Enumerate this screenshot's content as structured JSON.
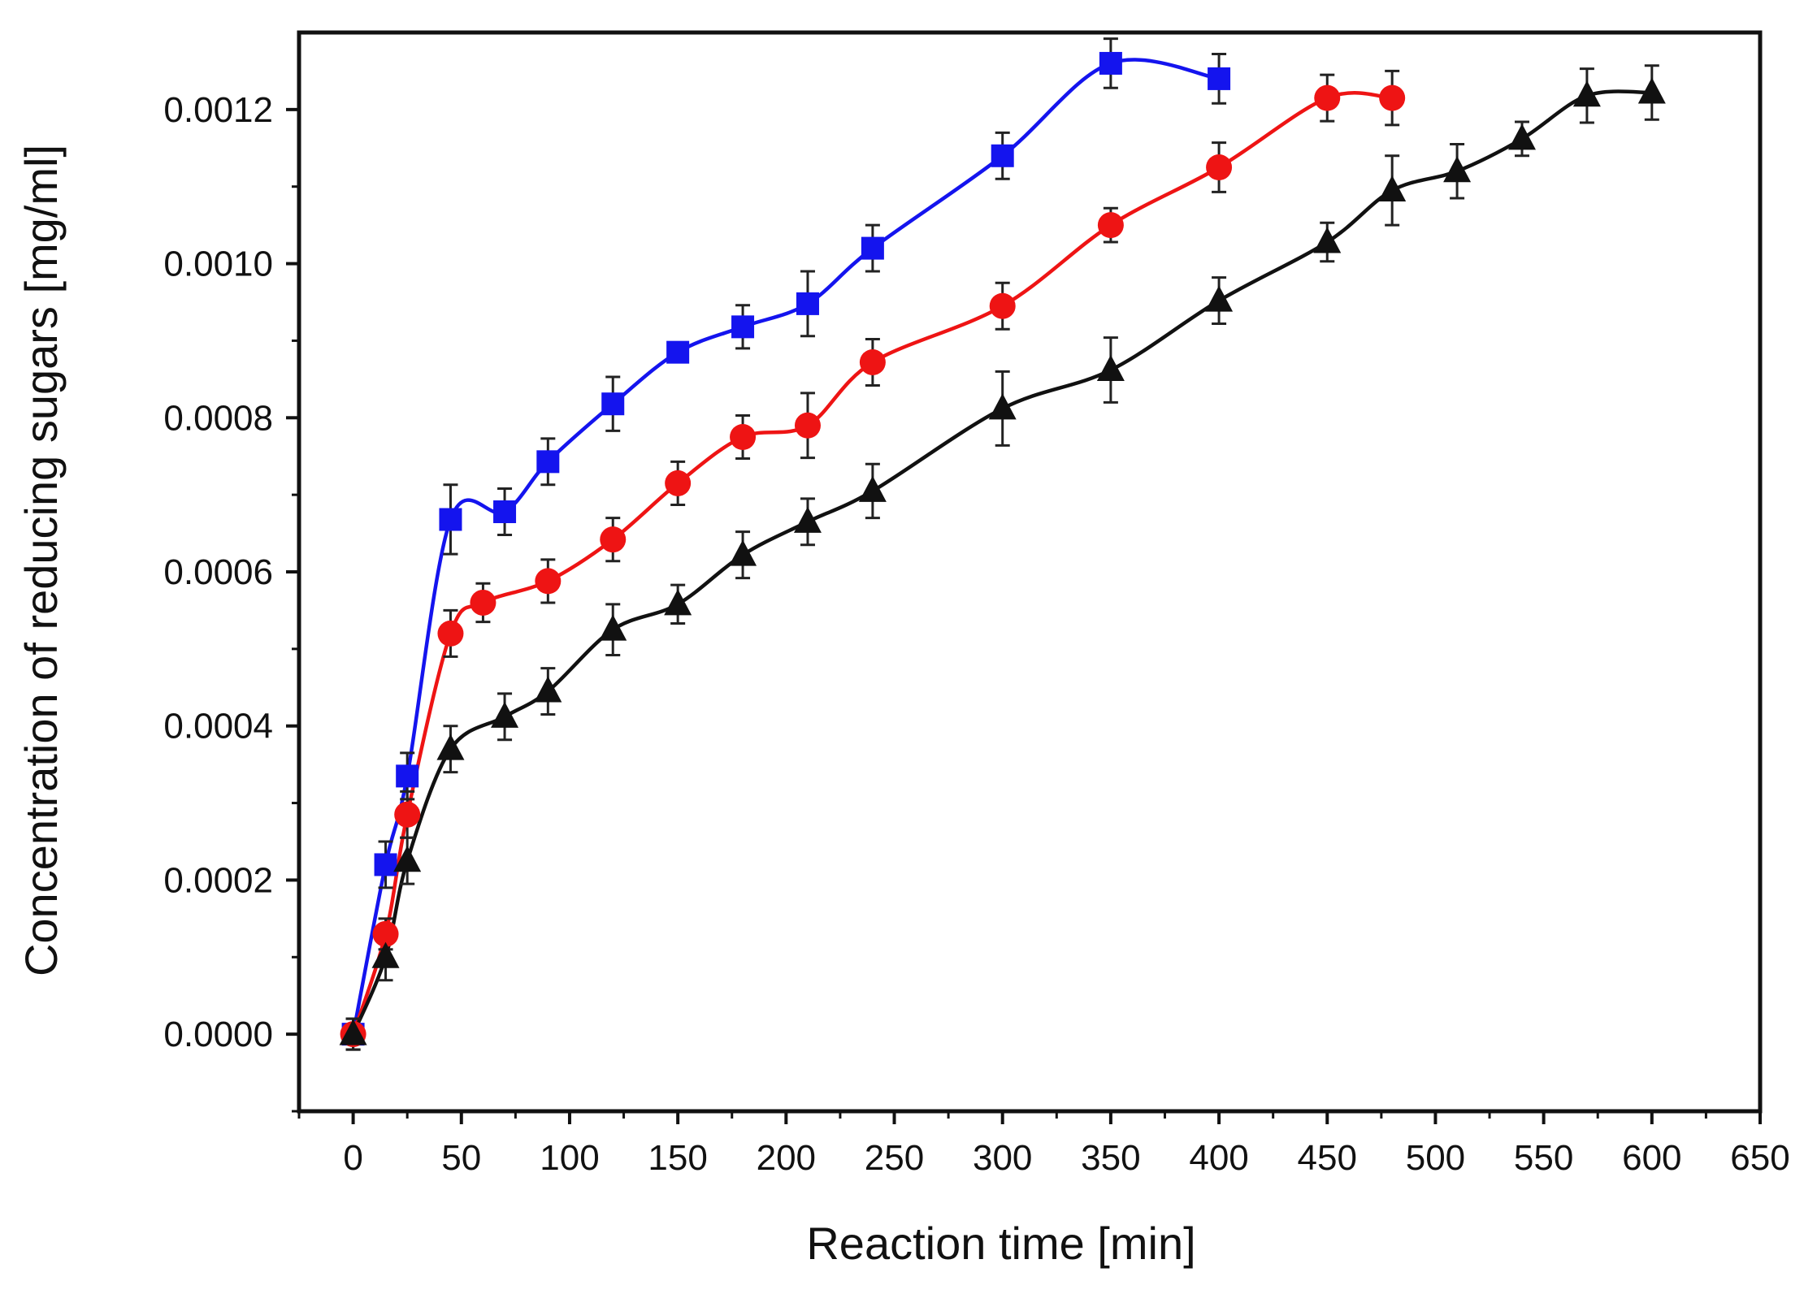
{
  "chart_data": {
    "type": "line",
    "title": "",
    "xlabel": "Reaction time [min]",
    "ylabel": "Concentration of reducing sugars [mg/ml]",
    "xlim": [
      -25,
      650
    ],
    "ylim": [
      -0.0001,
      0.0013
    ],
    "xticks": [
      0,
      50,
      100,
      150,
      200,
      250,
      300,
      350,
      400,
      450,
      500,
      550,
      600,
      650
    ],
    "xtick_labels": [
      "0",
      "50",
      "100",
      "150",
      "200",
      "250",
      "300",
      "350",
      "400",
      "450",
      "500",
      "550",
      "600",
      "650"
    ],
    "yticks": [
      0,
      0.0002,
      0.0004,
      0.0006,
      0.0008,
      0.001,
      0.0012
    ],
    "ytick_labels": [
      "0.0000",
      "0.0002",
      "0.0004",
      "0.0006",
      "0.0008",
      "0.0010",
      "0.0012"
    ],
    "grid": false,
    "legend": null,
    "series": [
      {
        "name": "blue-squares",
        "color": "#1414ee",
        "marker": "square",
        "x": [
          0,
          15,
          25,
          45,
          70,
          90,
          120,
          150,
          180,
          210,
          240,
          300,
          350,
          400
        ],
        "y": [
          0.0,
          0.00022,
          0.000335,
          0.000668,
          0.000678,
          0.000743,
          0.000818,
          0.000885,
          0.000918,
          0.000948,
          0.00102,
          0.00114,
          0.00126,
          0.00124
        ],
        "err": [
          2e-05,
          3e-05,
          3e-05,
          4.5e-05,
          3e-05,
          3e-05,
          3.5e-05,
          1e-05,
          2.8e-05,
          4.2e-05,
          3e-05,
          3e-05,
          3.2e-05,
          3.2e-05
        ]
      },
      {
        "name": "red-circles",
        "color": "#ee1414",
        "marker": "circle",
        "x": [
          0,
          15,
          25,
          45,
          60,
          90,
          120,
          150,
          180,
          210,
          240,
          300,
          350,
          400,
          450,
          480
        ],
        "y": [
          0.0,
          0.00013,
          0.000285,
          0.00052,
          0.00056,
          0.000588,
          0.000642,
          0.000715,
          0.000775,
          0.00079,
          0.000872,
          0.000945,
          0.00105,
          0.001125,
          0.001215,
          0.001215
        ],
        "err": [
          1e-05,
          2e-05,
          3e-05,
          3e-05,
          2.5e-05,
          2.8e-05,
          2.8e-05,
          2.8e-05,
          2.8e-05,
          4.2e-05,
          3e-05,
          3e-05,
          2.2e-05,
          3.2e-05,
          3e-05,
          3.5e-05
        ]
      },
      {
        "name": "black-triangles",
        "color": "#111111",
        "marker": "triangle",
        "x": [
          0,
          15,
          25,
          45,
          70,
          90,
          120,
          150,
          180,
          210,
          240,
          300,
          350,
          400,
          450,
          480,
          510,
          540,
          570,
          600
        ],
        "y": [
          0.0,
          0.0001,
          0.000225,
          0.00037,
          0.000412,
          0.000445,
          0.000525,
          0.000558,
          0.000622,
          0.000665,
          0.000705,
          0.000812,
          0.000862,
          0.000952,
          0.001028,
          0.001095,
          0.00112,
          0.001162,
          0.001218,
          0.001222
        ],
        "err": [
          2e-05,
          3e-05,
          3e-05,
          3e-05,
          3e-05,
          3e-05,
          3.3e-05,
          2.5e-05,
          3e-05,
          3e-05,
          3.5e-05,
          4.8e-05,
          4.2e-05,
          3e-05,
          2.5e-05,
          4.5e-05,
          3.5e-05,
          2.2e-05,
          3.5e-05,
          3.5e-05
        ]
      }
    ]
  }
}
